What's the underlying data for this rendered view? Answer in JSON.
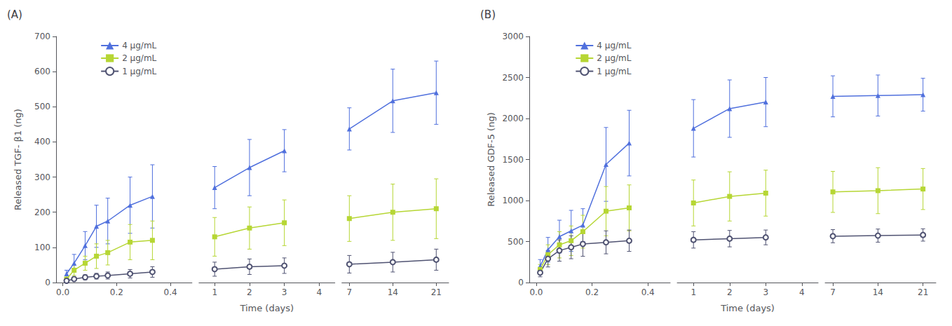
{
  "chart_data": [
    {
      "type": "line",
      "title": "(A)",
      "y_label": "Released TGF- β1 (ng)",
      "legend": "upper left",
      "grid": false,
      "x": [
        0.014,
        0.042,
        0.083,
        0.125,
        0.167,
        0.25,
        0.333
      ],
      "xlim": [
        -0.025,
        0.48
      ],
      "xticks": [
        {
          "value": 0.0,
          "label": "0.0"
        },
        0.2,
        0.4
      ],
      "ylim": [
        0,
        700
      ],
      "yticks": [
        0,
        100,
        200,
        300,
        400,
        500,
        600,
        700
      ],
      "series": [
        {
          "name": "4 μg/mL",
          "marker": "triangle",
          "values": [
            25,
            55,
            105,
            160,
            175,
            220,
            245
          ],
          "errors": [
            10,
            25,
            40,
            60,
            65,
            80,
            90
          ]
        },
        {
          "name": "2 μg/mL",
          "marker": "square",
          "values": [
            10,
            35,
            55,
            75,
            85,
            115,
            120
          ],
          "errors": [
            5,
            15,
            20,
            35,
            35,
            50,
            55
          ]
        },
        {
          "name": "1 μg/mL",
          "marker": "circle",
          "values": [
            5,
            10,
            15,
            18,
            20,
            25,
            30
          ],
          "errors": [
            3,
            5,
            7,
            8,
            10,
            12,
            15
          ]
        }
      ]
    },
    {
      "type": "line",
      "x_label": "Time (days)",
      "tick_labels": "x",
      "grid": false,
      "x": [
        1,
        2,
        3
      ],
      "xlim": [
        0.55,
        4.45
      ],
      "xticks": [
        1,
        2,
        3,
        4
      ],
      "ylim": [
        0,
        700
      ],
      "yticks": [
        0,
        100,
        200,
        300,
        400,
        500,
        600,
        700
      ],
      "series": [
        {
          "name": "4 μg/mL",
          "marker": "triangle",
          "values": [
            270,
            327,
            375
          ],
          "errors": [
            60,
            80,
            60
          ]
        },
        {
          "name": "2 μg/mL",
          "marker": "square",
          "values": [
            130,
            155,
            170
          ],
          "errors": [
            55,
            60,
            65
          ]
        },
        {
          "name": "1 μg/mL",
          "marker": "circle",
          "values": [
            38,
            45,
            48
          ],
          "errors": [
            20,
            22,
            22
          ]
        }
      ]
    },
    {
      "type": "line",
      "tick_labels": "x",
      "grid": false,
      "x": [
        7,
        14,
        21
      ],
      "xlim": [
        5.8,
        23.0
      ],
      "xticks": [
        7,
        14,
        21
      ],
      "ylim": [
        0,
        700
      ],
      "yticks": [
        0,
        100,
        200,
        300,
        400,
        500,
        600,
        700
      ],
      "series": [
        {
          "name": "4 μg/mL",
          "marker": "triangle",
          "values": [
            437,
            517,
            540
          ],
          "errors": [
            60,
            90,
            90
          ]
        },
        {
          "name": "2 μg/mL",
          "marker": "square",
          "values": [
            182,
            200,
            210
          ],
          "errors": [
            65,
            80,
            85
          ]
        },
        {
          "name": "1 μg/mL",
          "marker": "circle",
          "values": [
            52,
            58,
            65
          ],
          "errors": [
            25,
            28,
            30
          ]
        }
      ]
    },
    {
      "type": "line",
      "title": "(B)",
      "y_label": "Released GDF-5 (ng)",
      "legend": "upper left",
      "grid": false,
      "x": [
        0.014,
        0.042,
        0.083,
        0.125,
        0.167,
        0.25,
        0.333
      ],
      "xlim": [
        -0.025,
        0.48
      ],
      "xticks": [
        {
          "value": 0.0,
          "label": "0.0"
        },
        0.2,
        0.4
      ],
      "ylim": [
        0,
        3000
      ],
      "yticks": [
        0,
        500,
        1000,
        1500,
        2000,
        2500,
        3000
      ],
      "series": [
        {
          "name": "4 μg/mL",
          "marker": "triangle",
          "values": [
            200,
            400,
            560,
            630,
            700,
            1440,
            1700
          ],
          "errors": [
            80,
            150,
            200,
            250,
            200,
            450,
            400
          ]
        },
        {
          "name": "2 μg/mL",
          "marker": "square",
          "values": [
            160,
            340,
            460,
            510,
            620,
            870,
            910
          ],
          "errors": [
            60,
            120,
            160,
            180,
            200,
            300,
            280
          ]
        },
        {
          "name": "1 μg/mL",
          "marker": "circle",
          "values": [
            120,
            290,
            390,
            430,
            470,
            490,
            510
          ],
          "errors": [
            50,
            100,
            130,
            140,
            150,
            140,
            130
          ]
        }
      ]
    },
    {
      "type": "line",
      "x_label": "Time (days)",
      "tick_labels": "x",
      "grid": false,
      "x": [
        1,
        2,
        3
      ],
      "xlim": [
        0.55,
        4.45
      ],
      "xticks": [
        1,
        2,
        3,
        4
      ],
      "ylim": [
        0,
        3000
      ],
      "yticks": [
        0,
        500,
        1000,
        1500,
        2000,
        2500,
        3000
      ],
      "series": [
        {
          "name": "4 μg/mL",
          "marker": "triangle",
          "values": [
            1880,
            2120,
            2200
          ],
          "errors": [
            350,
            350,
            300
          ]
        },
        {
          "name": "2 μg/mL",
          "marker": "square",
          "values": [
            970,
            1050,
            1090
          ],
          "errors": [
            280,
            300,
            280
          ]
        },
        {
          "name": "1 μg/mL",
          "marker": "circle",
          "values": [
            520,
            535,
            550
          ],
          "errors": [
            100,
            100,
            90
          ]
        }
      ]
    },
    {
      "type": "line",
      "tick_labels": "x",
      "grid": false,
      "x": [
        7,
        14,
        21
      ],
      "xlim": [
        5.8,
        23.0
      ],
      "xticks": [
        7,
        14,
        21
      ],
      "ylim": [
        0,
        3000
      ],
      "yticks": [
        0,
        500,
        1000,
        1500,
        2000,
        2500,
        3000
      ],
      "series": [
        {
          "name": "4 μg/mL",
          "marker": "triangle",
          "values": [
            2270,
            2280,
            2290
          ],
          "errors": [
            250,
            250,
            200
          ]
        },
        {
          "name": "2 μg/mL",
          "marker": "square",
          "values": [
            1105,
            1120,
            1140
          ],
          "errors": [
            250,
            280,
            250
          ]
        },
        {
          "name": "1 μg/mL",
          "marker": "circle",
          "values": [
            565,
            572,
            580
          ],
          "errors": [
            80,
            80,
            75
          ]
        }
      ]
    }
  ]
}
